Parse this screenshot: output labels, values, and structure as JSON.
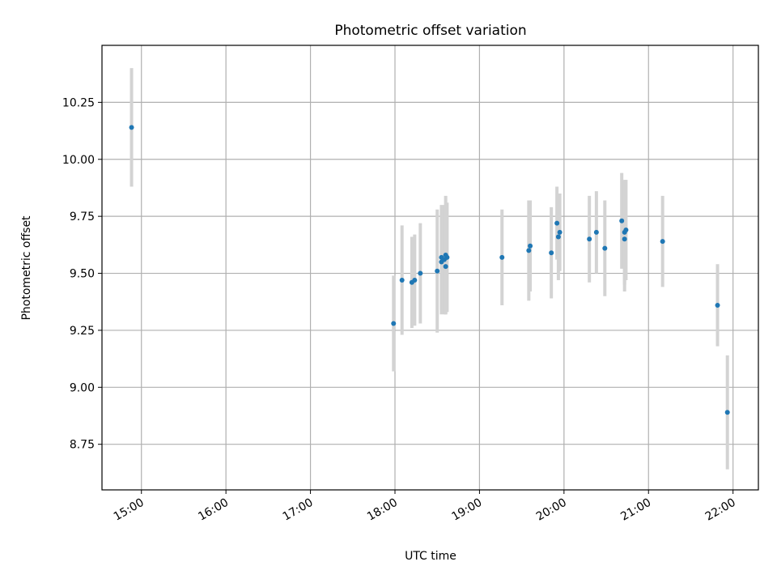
{
  "chart_data": {
    "type": "scatter",
    "title": "Photometric offset variation",
    "xlabel": "UTC time",
    "ylabel": "Photometric offset",
    "x_is_time": true,
    "xlim": [
      "14:32",
      "22:18"
    ],
    "ylim": [
      8.55,
      10.5
    ],
    "xticks": [
      "15:00",
      "16:00",
      "17:00",
      "18:00",
      "19:00",
      "20:00",
      "21:00",
      "22:00"
    ],
    "yticks": [
      8.75,
      9.0,
      9.25,
      9.5,
      9.75,
      10.0,
      10.25
    ],
    "ytick_labels": [
      "8.75",
      "9.00",
      "9.25",
      "9.50",
      "9.75",
      "10.00",
      "10.25"
    ],
    "grid": true,
    "colors": {
      "point": "#1f77b4",
      "errorbar": "#d3d3d3"
    },
    "points": [
      {
        "t": "14:53",
        "y": 10.14,
        "err": 0.26
      },
      {
        "t": "17:59",
        "y": 9.28,
        "err": 0.21
      },
      {
        "t": "18:05",
        "y": 9.47,
        "err": 0.24
      },
      {
        "t": "18:12",
        "y": 9.46,
        "err": 0.2
      },
      {
        "t": "18:14",
        "y": 9.47,
        "err": 0.2
      },
      {
        "t": "18:18",
        "y": 9.5,
        "err": 0.22
      },
      {
        "t": "18:30",
        "y": 9.51,
        "err": 0.27
      },
      {
        "t": "18:33",
        "y": 9.55,
        "err": 0.23
      },
      {
        "t": "18:33",
        "y": 9.57,
        "err": 0.23
      },
      {
        "t": "18:35",
        "y": 9.56,
        "err": 0.24
      },
      {
        "t": "18:36",
        "y": 9.53,
        "err": 0.21
      },
      {
        "t": "18:36",
        "y": 9.58,
        "err": 0.26
      },
      {
        "t": "18:37",
        "y": 9.57,
        "err": 0.24
      },
      {
        "t": "19:16",
        "y": 9.57,
        "err": 0.21
      },
      {
        "t": "19:35",
        "y": 9.6,
        "err": 0.22
      },
      {
        "t": "19:36",
        "y": 9.62,
        "err": 0.2
      },
      {
        "t": "19:51",
        "y": 9.59,
        "err": 0.2
      },
      {
        "t": "19:55",
        "y": 9.72,
        "err": 0.16
      },
      {
        "t": "19:56",
        "y": 9.66,
        "err": 0.19
      },
      {
        "t": "19:57",
        "y": 9.68,
        "err": 0.17
      },
      {
        "t": "20:18",
        "y": 9.65,
        "err": 0.19
      },
      {
        "t": "20:23",
        "y": 9.68,
        "err": 0.18
      },
      {
        "t": "20:29",
        "y": 9.61,
        "err": 0.21
      },
      {
        "t": "20:41",
        "y": 9.73,
        "err": 0.21
      },
      {
        "t": "20:43",
        "y": 9.65,
        "err": 0.23
      },
      {
        "t": "20:43",
        "y": 9.68,
        "err": 0.23
      },
      {
        "t": "20:44",
        "y": 9.69,
        "err": 0.22
      },
      {
        "t": "21:10",
        "y": 9.64,
        "err": 0.2
      },
      {
        "t": "21:49",
        "y": 9.36,
        "err": 0.18
      },
      {
        "t": "21:56",
        "y": 8.89,
        "err": 0.25
      }
    ]
  }
}
